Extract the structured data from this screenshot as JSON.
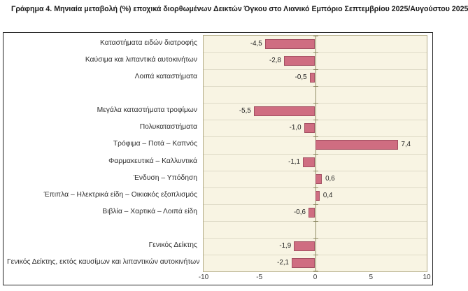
{
  "chart_data": {
    "type": "bar",
    "orientation": "horizontal",
    "title": "Γράφημα 4. Μηνιαία μεταβολή (%) εποχικά διορθωμένων Δεικτών Όγκου στο Λιανικό Εμπόριο Σεπτεμβρίου 2025/Αυγούστου 2025",
    "xlabel": "",
    "ylabel": "",
    "xlim": [
      -10,
      10
    ],
    "x_ticks": [
      "-10",
      "-5",
      "0",
      "5",
      "10"
    ],
    "x_tick_values": [
      -10,
      -5,
      0,
      5,
      10
    ],
    "grid": "horizontal-row-boundaries",
    "legend_position": "none",
    "rows": [
      {
        "label": "Καταστήματα ειδών διατροφής",
        "value": -4.5,
        "display": "-4,5"
      },
      {
        "label": "Καύσιμα και λιπαντικά αυτοκινήτων",
        "value": -2.8,
        "display": "-2,8"
      },
      {
        "label": "Λοιπά καταστήματα",
        "value": -0.5,
        "display": "-0,5"
      },
      {
        "label": "",
        "value": null,
        "display": ""
      },
      {
        "label": "Μεγάλα καταστήματα τροφίμων",
        "value": -5.5,
        "display": "-5,5"
      },
      {
        "label": "Πολυκαταστήματα",
        "value": -1.0,
        "display": "-1,0"
      },
      {
        "label": "Τρόφιμα – Ποτά – Καπνός",
        "value": 7.4,
        "display": "7,4"
      },
      {
        "label": "Φαρμακευτικά – Καλλυντικά",
        "value": -1.1,
        "display": "-1,1"
      },
      {
        "label": "Ένδυση – Υπόδηση",
        "value": 0.6,
        "display": "0,6"
      },
      {
        "label": "Έπιπλα – Ηλεκτρικά είδη – Οικιακός εξοπλισμός",
        "value": 0.4,
        "display": "0,4"
      },
      {
        "label": "Βιβλία – Χαρτικά – Λοιπά είδη",
        "value": -0.6,
        "display": "-0,6"
      },
      {
        "label": "",
        "value": null,
        "display": ""
      },
      {
        "label": "Γενικός Δείκτης",
        "value": -1.9,
        "display": "-1,9"
      },
      {
        "label": "Γενικός Δείκτης, εκτός καυσίμων και λιπαντικών αυτοκινήτων",
        "value": -2.1,
        "display": "-2,1"
      }
    ],
    "colors": {
      "bar_fill": "#cf6d81",
      "bar_border": "#a34f62",
      "plot_background": "#f8f4e3",
      "plot_border": "#b3ac87",
      "gridline": "#dedac7",
      "zero_axis": "#8e8a64",
      "frame_border": "#262626",
      "title_text": "#1a1a1a",
      "category_text": "#2e2e2e",
      "value_text": "#1f1f1f"
    }
  }
}
